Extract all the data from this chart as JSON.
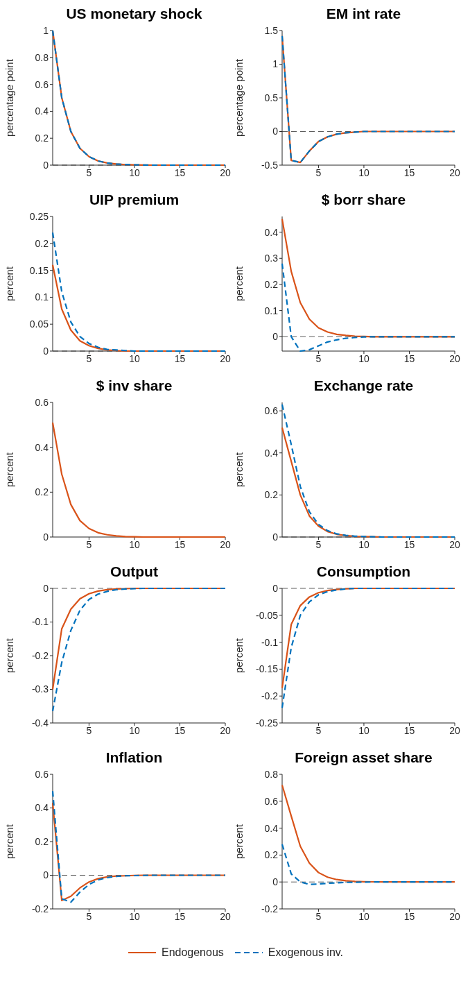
{
  "chart_data": [
    {
      "type": "line",
      "title": "US monetary shock",
      "ylabel": "percentage point",
      "x": [
        1,
        2,
        3,
        4,
        5,
        6,
        7,
        8,
        9,
        10,
        11,
        12,
        13,
        14,
        15,
        16,
        17,
        18,
        19,
        20
      ],
      "xlim": [
        1,
        20
      ],
      "xticks": [
        5,
        10,
        15,
        20
      ],
      "ylim": [
        0,
        1
      ],
      "yticks": [
        0,
        0.2,
        0.4,
        0.6,
        0.8,
        1
      ],
      "grid": false,
      "ref_lines": [
        {
          "axis": "y",
          "value": 0,
          "color": "#333333",
          "line_style": "dashed"
        }
      ],
      "series": [
        {
          "color": "#d95319",
          "line_style": "solid",
          "values": [
            1,
            0.5,
            0.25,
            0.125,
            0.063,
            0.031,
            0.016,
            0.008,
            0.004,
            0.002,
            0.001,
            0,
            0,
            0,
            0,
            0,
            0,
            0,
            0,
            0
          ]
        },
        {
          "color": "#0072bd",
          "line_style": "dashed",
          "values": [
            1,
            0.5,
            0.25,
            0.125,
            0.063,
            0.031,
            0.016,
            0.008,
            0.004,
            0.002,
            0.001,
            0,
            0,
            0,
            0,
            0,
            0,
            0,
            0,
            0
          ]
        }
      ]
    },
    {
      "type": "line",
      "title": "EM int rate",
      "ylabel": "percentage point",
      "x": [
        1,
        2,
        3,
        4,
        5,
        6,
        7,
        8,
        9,
        10,
        11,
        12,
        13,
        14,
        15,
        16,
        17,
        18,
        19,
        20
      ],
      "xlim": [
        1,
        20
      ],
      "xticks": [
        5,
        10,
        15,
        20
      ],
      "ylim": [
        -0.5,
        1.5
      ],
      "yticks": [
        -0.5,
        0,
        0.5,
        1,
        1.5
      ],
      "grid": false,
      "ref_lines": [
        {
          "axis": "y",
          "value": 0,
          "color": "#333333",
          "line_style": "dashed"
        }
      ],
      "series": [
        {
          "color": "#d95319",
          "line_style": "solid",
          "values": [
            1.42,
            -0.43,
            -0.46,
            -0.29,
            -0.15,
            -0.08,
            -0.04,
            -0.02,
            -0.01,
            0,
            0,
            0,
            0,
            0,
            0,
            0,
            0,
            0,
            0,
            0
          ]
        },
        {
          "color": "#0072bd",
          "line_style": "dashed",
          "values": [
            1.42,
            -0.43,
            -0.46,
            -0.29,
            -0.15,
            -0.08,
            -0.04,
            -0.02,
            -0.01,
            0,
            0,
            0,
            0,
            0,
            0,
            0,
            0,
            0,
            0,
            0
          ]
        }
      ]
    },
    {
      "type": "line",
      "title": "UIP premium",
      "ylabel": "percent",
      "x": [
        1,
        2,
        3,
        4,
        5,
        6,
        7,
        8,
        9,
        10,
        11,
        12,
        13,
        14,
        15,
        16,
        17,
        18,
        19,
        20
      ],
      "xlim": [
        1,
        20
      ],
      "xticks": [
        5,
        10,
        15,
        20
      ],
      "ylim": [
        0,
        0.25
      ],
      "yticks": [
        0,
        0.05,
        0.1,
        0.15,
        0.2,
        0.25
      ],
      "grid": false,
      "ref_lines": [
        {
          "axis": "y",
          "value": 0,
          "color": "#333333",
          "line_style": "dashed"
        }
      ],
      "series": [
        {
          "color": "#d95319",
          "line_style": "solid",
          "values": [
            0.16,
            0.078,
            0.039,
            0.019,
            0.01,
            0.005,
            0.002,
            0.001,
            0,
            0,
            0,
            0,
            0,
            0,
            0,
            0,
            0,
            0,
            0,
            0
          ]
        },
        {
          "color": "#0072bd",
          "line_style": "dashed",
          "values": [
            0.22,
            0.11,
            0.054,
            0.027,
            0.014,
            0.007,
            0.003,
            0.002,
            0.001,
            0,
            0,
            0,
            0,
            0,
            0,
            0,
            0,
            0,
            0,
            0
          ]
        }
      ]
    },
    {
      "type": "line",
      "title": "$ borr share",
      "ylabel": "percent",
      "x": [
        1,
        2,
        3,
        4,
        5,
        6,
        7,
        8,
        9,
        10,
        11,
        12,
        13,
        14,
        15,
        16,
        17,
        18,
        19,
        20
      ],
      "xlim": [
        1,
        20
      ],
      "xticks": [
        5,
        10,
        15,
        20
      ],
      "ylim": [
        -0.055,
        0.46
      ],
      "yticks": [
        0,
        0.1,
        0.2,
        0.3,
        0.4
      ],
      "grid": false,
      "ref_lines": [
        {
          "axis": "y",
          "value": 0,
          "color": "#333333",
          "line_style": "dashed"
        }
      ],
      "series": [
        {
          "color": "#d95319",
          "line_style": "solid",
          "values": [
            0.45,
            0.25,
            0.13,
            0.067,
            0.034,
            0.018,
            0.009,
            0.005,
            0.002,
            0.001,
            0,
            0,
            0,
            0,
            0,
            0,
            0,
            0,
            0,
            0
          ]
        },
        {
          "color": "#0072bd",
          "line_style": "dashed",
          "values": [
            0.28,
            0,
            -0.055,
            -0.05,
            -0.035,
            -0.02,
            -0.012,
            -0.006,
            -0.003,
            -0.001,
            0,
            0,
            0,
            0,
            0,
            0,
            0,
            0,
            0,
            0
          ]
        }
      ]
    },
    {
      "type": "line",
      "title": "$ inv share",
      "ylabel": "percent",
      "x": [
        1,
        2,
        3,
        4,
        5,
        6,
        7,
        8,
        9,
        10,
        11,
        12,
        13,
        14,
        15,
        16,
        17,
        18,
        19,
        20
      ],
      "xlim": [
        1,
        20
      ],
      "xticks": [
        5,
        10,
        15,
        20
      ],
      "ylim": [
        0,
        0.6
      ],
      "yticks": [
        0,
        0.2,
        0.4,
        0.6
      ],
      "grid": false,
      "series": [
        {
          "color": "#d95319",
          "line_style": "solid",
          "values": [
            0.51,
            0.28,
            0.145,
            0.073,
            0.038,
            0.019,
            0.01,
            0.005,
            0.002,
            0.001,
            0,
            0,
            0,
            0,
            0,
            0,
            0,
            0,
            0,
            0
          ]
        }
      ]
    },
    {
      "type": "line",
      "title": "Exchange rate",
      "ylabel": "percent",
      "x": [
        1,
        2,
        3,
        4,
        5,
        6,
        7,
        8,
        9,
        10,
        11,
        12,
        13,
        14,
        15,
        16,
        17,
        18,
        19,
        20
      ],
      "xlim": [
        1,
        20
      ],
      "xticks": [
        5,
        10,
        15,
        20
      ],
      "ylim": [
        0,
        0.64
      ],
      "yticks": [
        0,
        0.2,
        0.4,
        0.6
      ],
      "grid": false,
      "ref_lines": [
        {
          "axis": "y",
          "value": 0,
          "color": "#333333",
          "line_style": "dashed"
        }
      ],
      "series": [
        {
          "color": "#d95319",
          "line_style": "solid",
          "values": [
            0.52,
            0.36,
            0.2,
            0.1,
            0.052,
            0.026,
            0.013,
            0.007,
            0.003,
            0.002,
            0.001,
            0,
            0,
            0,
            0,
            0,
            0,
            0,
            0,
            0
          ]
        },
        {
          "color": "#0072bd",
          "line_style": "dashed",
          "values": [
            0.63,
            0.44,
            0.24,
            0.12,
            0.06,
            0.03,
            0.015,
            0.008,
            0.004,
            0.002,
            0.001,
            0,
            0,
            0,
            0,
            0,
            0,
            0,
            0,
            0
          ]
        }
      ]
    },
    {
      "type": "line",
      "title": "Output",
      "ylabel": "percent",
      "x": [
        1,
        2,
        3,
        4,
        5,
        6,
        7,
        8,
        9,
        10,
        11,
        12,
        13,
        14,
        15,
        16,
        17,
        18,
        19,
        20
      ],
      "xlim": [
        1,
        20
      ],
      "xticks": [
        5,
        10,
        15,
        20
      ],
      "ylim": [
        -0.4,
        0
      ],
      "yticks": [
        -0.4,
        -0.3,
        -0.2,
        -0.1,
        0
      ],
      "grid": false,
      "ref_lines": [
        {
          "axis": "y",
          "value": 0,
          "color": "#333333",
          "line_style": "dashed"
        }
      ],
      "series": [
        {
          "color": "#d95319",
          "line_style": "solid",
          "values": [
            -0.3,
            -0.12,
            -0.062,
            -0.031,
            -0.016,
            -0.008,
            -0.004,
            -0.002,
            -0.001,
            0,
            0,
            0,
            0,
            0,
            0,
            0,
            0,
            0,
            0,
            0
          ]
        },
        {
          "color": "#0072bd",
          "line_style": "dashed",
          "values": [
            -0.365,
            -0.22,
            -0.125,
            -0.065,
            -0.033,
            -0.017,
            -0.009,
            -0.004,
            -0.002,
            -0.001,
            0,
            0,
            0,
            0,
            0,
            0,
            0,
            0,
            0,
            0
          ]
        }
      ]
    },
    {
      "type": "line",
      "title": "Consumption",
      "ylabel": "percent",
      "x": [
        1,
        2,
        3,
        4,
        5,
        6,
        7,
        8,
        9,
        10,
        11,
        12,
        13,
        14,
        15,
        16,
        17,
        18,
        19,
        20
      ],
      "xlim": [
        1,
        20
      ],
      "xticks": [
        5,
        10,
        15,
        20
      ],
      "ylim": [
        -0.25,
        0
      ],
      "yticks": [
        -0.25,
        -0.2,
        -0.15,
        -0.1,
        -0.05,
        0
      ],
      "grid": false,
      "ref_lines": [
        {
          "axis": "y",
          "value": 0,
          "color": "#333333",
          "line_style": "dashed"
        }
      ],
      "series": [
        {
          "color": "#d95319",
          "line_style": "solid",
          "values": [
            -0.185,
            -0.067,
            -0.032,
            -0.016,
            -0.008,
            -0.004,
            -0.002,
            -0.001,
            0,
            0,
            0,
            0,
            0,
            0,
            0,
            0,
            0,
            0,
            0,
            0
          ]
        },
        {
          "color": "#0072bd",
          "line_style": "dashed",
          "values": [
            -0.222,
            -0.11,
            -0.05,
            -0.025,
            -0.012,
            -0.006,
            -0.003,
            -0.001,
            0,
            0,
            0,
            0,
            0,
            0,
            0,
            0,
            0,
            0,
            0,
            0
          ]
        }
      ]
    },
    {
      "type": "line",
      "title": "Inflation",
      "ylabel": "percent",
      "x": [
        1,
        2,
        3,
        4,
        5,
        6,
        7,
        8,
        9,
        10,
        11,
        12,
        13,
        14,
        15,
        16,
        17,
        18,
        19,
        20
      ],
      "xlim": [
        1,
        20
      ],
      "xticks": [
        5,
        10,
        15,
        20
      ],
      "ylim": [
        -0.2,
        0.6
      ],
      "yticks": [
        -0.2,
        0,
        0.2,
        0.4,
        0.6
      ],
      "grid": false,
      "ref_lines": [
        {
          "axis": "y",
          "value": 0,
          "color": "#333333",
          "line_style": "dashed"
        }
      ],
      "series": [
        {
          "color": "#d95319",
          "line_style": "solid",
          "values": [
            0.43,
            -0.15,
            -0.125,
            -0.075,
            -0.04,
            -0.02,
            -0.01,
            -0.005,
            -0.003,
            -0.001,
            0,
            0,
            0,
            0,
            0,
            0,
            0,
            0,
            0,
            0
          ]
        },
        {
          "color": "#0072bd",
          "line_style": "dashed",
          "values": [
            0.5,
            -0.14,
            -0.16,
            -0.1,
            -0.055,
            -0.028,
            -0.014,
            -0.007,
            -0.003,
            -0.002,
            -0.001,
            0,
            0,
            0,
            0,
            0,
            0,
            0,
            0,
            0
          ]
        }
      ]
    },
    {
      "type": "line",
      "title": "Foreign asset share",
      "ylabel": "percent",
      "x": [
        1,
        2,
        3,
        4,
        5,
        6,
        7,
        8,
        9,
        10,
        11,
        12,
        13,
        14,
        15,
        16,
        17,
        18,
        19,
        20
      ],
      "xlim": [
        1,
        20
      ],
      "xticks": [
        5,
        10,
        15,
        20
      ],
      "ylim": [
        -0.2,
        0.8
      ],
      "yticks": [
        -0.2,
        0,
        0.2,
        0.4,
        0.6,
        0.8
      ],
      "grid": false,
      "legend": "bottom",
      "ref_lines": [
        {
          "axis": "y",
          "value": 0,
          "color": "#333333",
          "line_style": "dashed"
        }
      ],
      "series": [
        {
          "name": "Endogenous",
          "color": "#d95319",
          "line_style": "solid",
          "values": [
            0.72,
            0.49,
            0.265,
            0.14,
            0.07,
            0.036,
            0.018,
            0.009,
            0.004,
            0.002,
            0.001,
            0,
            0,
            0,
            0,
            0,
            0,
            0,
            0,
            0
          ]
        },
        {
          "name": "Exogenous inv.",
          "color": "#0072bd",
          "line_style": "dashed",
          "values": [
            0.28,
            0.06,
            0,
            -0.018,
            -0.015,
            -0.01,
            -0.006,
            -0.003,
            -0.002,
            -0.001,
            0,
            0,
            0,
            0,
            0,
            0,
            0,
            0,
            0,
            0
          ]
        }
      ]
    }
  ]
}
